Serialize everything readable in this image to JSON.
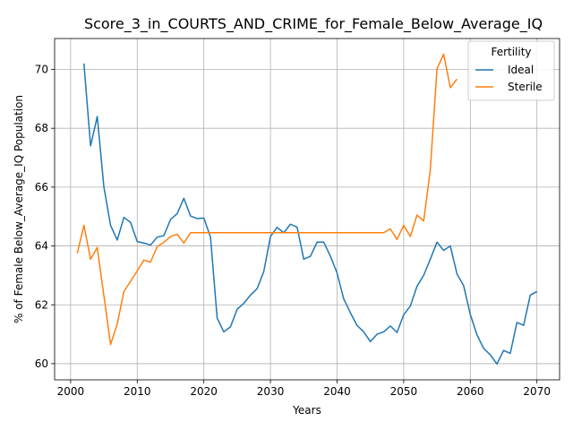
{
  "chart_data": {
    "type": "line",
    "title": "Score_3_in_COURTS_AND_CRIME_for_Female_Below_Average_IQ",
    "xlabel": "Years",
    "ylabel": "% of Female Below_Average_IQ Population",
    "xlim": [
      1997.6,
      2073.4
    ],
    "ylim": [
      59.45,
      71.05
    ],
    "xticks": [
      2000,
      2010,
      2020,
      2030,
      2040,
      2050,
      2060,
      2070
    ],
    "yticks": [
      60,
      62,
      64,
      66,
      68,
      70
    ],
    "grid": true,
    "legend": {
      "title": "Fertility",
      "position": "top-right"
    },
    "series": [
      {
        "name": "Ideal",
        "color": "#1f77b4",
        "x": [
          2002,
          2003,
          2004,
          2005,
          2006,
          2007,
          2008,
          2009,
          2010,
          2011,
          2012,
          2013,
          2014,
          2015,
          2016,
          2017,
          2018,
          2019,
          2020,
          2021,
          2022,
          2023,
          2024,
          2025,
          2026,
          2027,
          2028,
          2029,
          2030,
          2031,
          2032,
          2033,
          2034,
          2035,
          2036,
          2037,
          2038,
          2039,
          2040,
          2041,
          2042,
          2043,
          2044,
          2045,
          2046,
          2047,
          2048,
          2049,
          2050,
          2051,
          2052,
          2053,
          2054,
          2055,
          2056,
          2057,
          2058,
          2059,
          2060,
          2061,
          2062,
          2063,
          2064,
          2065,
          2066,
          2067,
          2068,
          2069,
          2070
        ],
        "y": [
          70.2,
          67.4,
          68.4,
          66.0,
          64.7,
          64.2,
          64.97,
          64.8,
          64.15,
          64.1,
          64.03,
          64.3,
          64.35,
          64.9,
          65.1,
          65.62,
          65.02,
          64.93,
          64.95,
          64.3,
          61.55,
          61.08,
          61.25,
          61.85,
          62.05,
          62.33,
          62.55,
          63.13,
          64.32,
          64.63,
          64.45,
          64.74,
          64.64,
          63.55,
          63.65,
          64.13,
          64.13,
          63.65,
          63.08,
          62.2,
          61.73,
          61.3,
          61.08,
          60.75,
          61.0,
          61.08,
          61.28,
          61.06,
          61.66,
          61.96,
          62.63,
          63.0,
          63.55,
          64.13,
          63.85,
          64.0,
          63.05,
          62.65,
          61.67,
          60.98,
          60.52,
          60.3,
          59.99,
          60.45,
          60.35,
          61.4,
          61.3,
          62.33,
          62.45
        ]
      },
      {
        "name": "Sterile",
        "color": "#ff7f0e",
        "x": [
          2001,
          2002,
          2003,
          2004,
          2005,
          2006,
          2007,
          2008,
          2009,
          2010,
          2011,
          2012,
          2013,
          2014,
          2015,
          2016,
          2017,
          2018,
          2019,
          2020,
          2021,
          2022,
          2023,
          2024,
          2025,
          2026,
          2027,
          2028,
          2029,
          2030,
          2031,
          2032,
          2033,
          2034,
          2035,
          2036,
          2037,
          2038,
          2039,
          2040,
          2041,
          2042,
          2043,
          2044,
          2045,
          2046,
          2047,
          2048,
          2049,
          2050,
          2051,
          2052,
          2053,
          2054,
          2055,
          2056,
          2057,
          2058
        ],
        "y": [
          63.75,
          64.7,
          63.55,
          63.95,
          62.3,
          60.65,
          61.35,
          62.45,
          62.8,
          63.15,
          63.52,
          63.45,
          63.98,
          64.12,
          64.32,
          64.4,
          64.1,
          64.45,
          64.45,
          64.45,
          64.45,
          64.45,
          64.45,
          64.45,
          64.45,
          64.45,
          64.45,
          64.45,
          64.45,
          64.45,
          64.45,
          64.45,
          64.45,
          64.45,
          64.45,
          64.45,
          64.45,
          64.45,
          64.45,
          64.45,
          64.45,
          64.45,
          64.45,
          64.45,
          64.45,
          64.45,
          64.45,
          64.58,
          64.22,
          64.7,
          64.32,
          65.05,
          64.85,
          66.6,
          70.02,
          70.52,
          69.38,
          69.67
        ]
      }
    ]
  }
}
